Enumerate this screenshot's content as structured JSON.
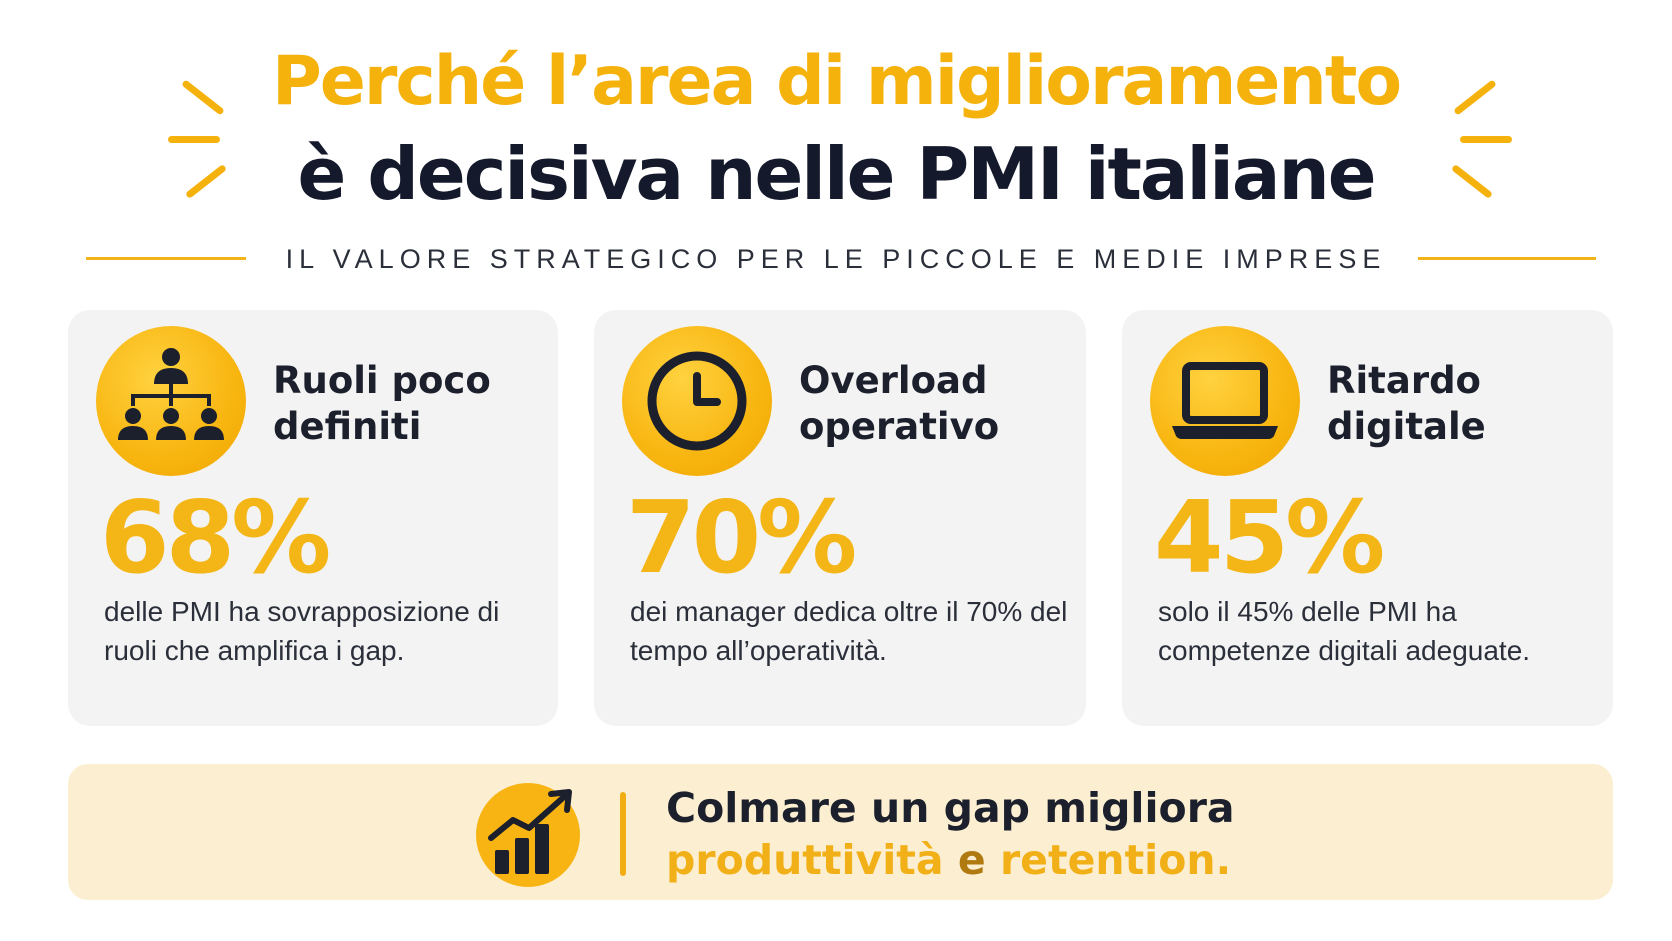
{
  "header": {
    "title_line1": "Perché l’area di miglioramento",
    "title_line2": "è decisiva nelle PMI italiane",
    "subtitle": "IL VALORE STRATEGICO PER LE PICCOLE E MEDIE IMPRESE"
  },
  "colors": {
    "accent": "#f5b20c",
    "dark": "#141a2b",
    "card_bg": "#f3f3f3",
    "banner_bg": "#fcefd1"
  },
  "cards": [
    {
      "icon": "org-chart-icon",
      "title": "Ruoli poco definiti",
      "stat": "68%",
      "description": "delle PMI ha sovrapposizione di ruoli che amplifica i gap."
    },
    {
      "icon": "clock-icon",
      "title": "Overload operativo",
      "stat": "70%",
      "description": "dei manager dedica oltre il 70% del tempo all’operatività."
    },
    {
      "icon": "laptop-icon",
      "title": "Ritardo digitale",
      "stat": "45%",
      "description": "solo il 45% delle PMI ha competenze digitali adeguate."
    }
  ],
  "banner": {
    "icon": "growth-chart-icon",
    "line1": "Colmare un gap migliora",
    "line2_part1": "produttività",
    "line2_and": "e",
    "line2_part2": "retention."
  }
}
